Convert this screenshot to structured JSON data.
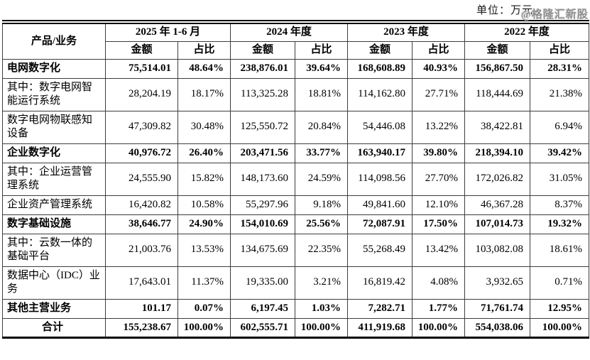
{
  "meta": {
    "unit_label": "单位：万元",
    "watermark": "@格隆汇新股"
  },
  "table": {
    "corner_header": "产品/业务",
    "period_headers": [
      "2025 年 1-6 月",
      "2024 年度",
      "2023 年度",
      "2022 年度"
    ],
    "sub_headers": {
      "amount": "金额",
      "ratio": "占比"
    },
    "rows": [
      {
        "label": "电网数字化",
        "bold": true,
        "center": false,
        "values": [
          "75,514.01",
          "48.64%",
          "238,876.01",
          "39.64%",
          "168,608.89",
          "40.93%",
          "156,867.50",
          "28.31%"
        ]
      },
      {
        "label": "其中：数字电网智能运行系统",
        "bold": false,
        "center": false,
        "values": [
          "28,204.19",
          "18.17%",
          "113,325.28",
          "18.81%",
          "114,162.80",
          "27.71%",
          "118,444.69",
          "21.38%"
        ]
      },
      {
        "label": "数字电网物联感知设备",
        "bold": false,
        "center": false,
        "values": [
          "47,309.82",
          "30.48%",
          "125,550.72",
          "20.84%",
          "54,446.08",
          "13.22%",
          "38,422.81",
          "6.94%"
        ]
      },
      {
        "label": "企业数字化",
        "bold": true,
        "center": false,
        "values": [
          "40,976.72",
          "26.40%",
          "203,471.56",
          "33.77%",
          "163,940.17",
          "39.80%",
          "218,394.10",
          "39.42%"
        ]
      },
      {
        "label": "其中：企业运营管理系统",
        "bold": false,
        "center": false,
        "values": [
          "24,555.90",
          "15.82%",
          "148,173.60",
          "24.59%",
          "114,098.56",
          "27.70%",
          "172,026.82",
          "31.05%"
        ]
      },
      {
        "label": "企业资产管理系统",
        "bold": false,
        "center": false,
        "values": [
          "16,420.82",
          "10.58%",
          "55,297.96",
          "9.18%",
          "49,841.60",
          "12.10%",
          "46,367.28",
          "8.37%"
        ]
      },
      {
        "label": "数字基础设施",
        "bold": true,
        "center": false,
        "values": [
          "38,646.77",
          "24.90%",
          "154,010.69",
          "25.56%",
          "72,087.91",
          "17.50%",
          "107,014.73",
          "19.32%"
        ]
      },
      {
        "label": "其中：云数一体的基础平台",
        "bold": false,
        "center": false,
        "values": [
          "21,003.76",
          "13.53%",
          "134,675.69",
          "22.35%",
          "55,268.49",
          "13.42%",
          "103,082.08",
          "18.61%"
        ]
      },
      {
        "label": "数据中心（IDC）业务",
        "bold": false,
        "center": false,
        "values": [
          "17,643.01",
          "11.37%",
          "19,335.00",
          "3.21%",
          "16,819.42",
          "4.08%",
          "3,932.65",
          "0.71%"
        ]
      },
      {
        "label": "其他主营业务",
        "bold": true,
        "center": false,
        "values": [
          "101.17",
          "0.07%",
          "6,197.45",
          "1.03%",
          "7,282.71",
          "1.77%",
          "71,761.74",
          "12.95%"
        ]
      },
      {
        "label": "合计",
        "bold": true,
        "center": true,
        "values": [
          "155,238.67",
          "100.00%",
          "602,555.71",
          "100.00%",
          "411,919.68",
          "100.00%",
          "554,038.06",
          "100.00%"
        ]
      }
    ]
  }
}
